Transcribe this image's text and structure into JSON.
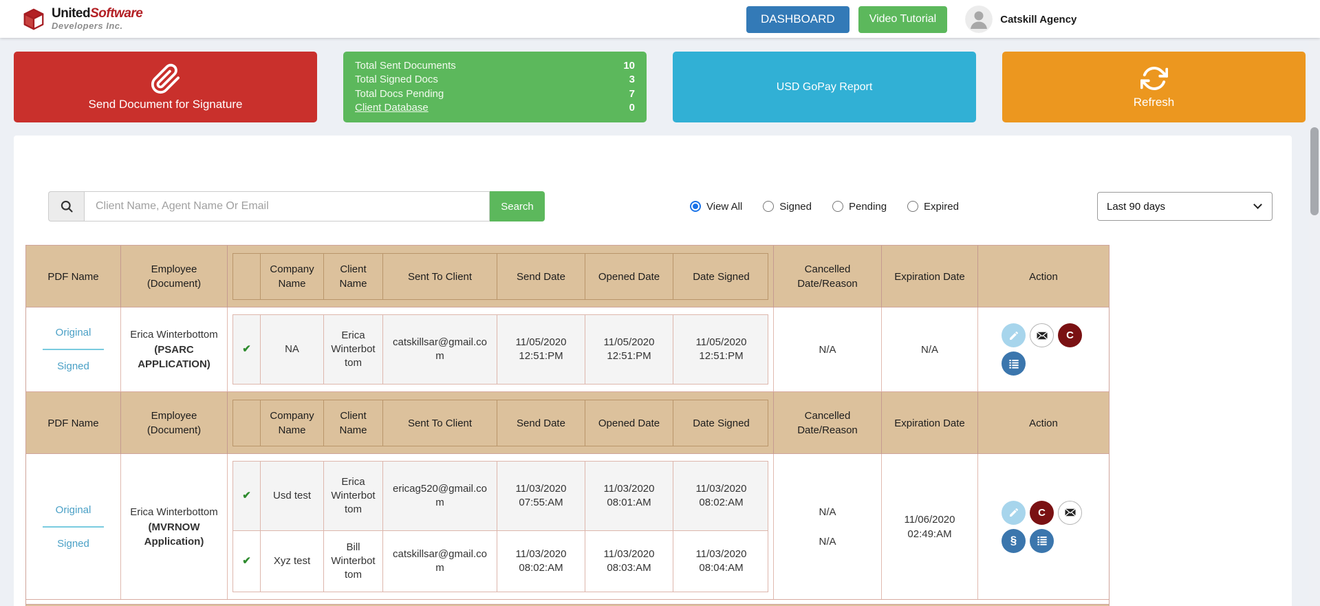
{
  "topbar": {
    "logo": {
      "word1": "United",
      "word2": "Software",
      "tagline": "Developers Inc."
    },
    "dashboard_button": "DASHBOARD",
    "video_button": "Video Tutorial",
    "agency_name": "Catskill Agency"
  },
  "cards": {
    "send_signature": {
      "label": "Send Document for Signature",
      "color": "#c9302c"
    },
    "stats": [
      {
        "label": "Total Sent Documents",
        "value": "10"
      },
      {
        "label": "Total Signed Docs",
        "value": "3"
      },
      {
        "label": "Total Docs Pending",
        "value": "7"
      },
      {
        "label": "Client Database",
        "value": "0",
        "link": true
      }
    ],
    "stats_color": "#5cb85c",
    "gopay": {
      "label": "USD GoPay Report",
      "color": "#31b0d5"
    },
    "refresh": {
      "label": "Refresh",
      "color": "#ec971f"
    }
  },
  "toolbar": {
    "search": {
      "placeholder": "Client Name, Agent Name Or Email",
      "button": "Search"
    },
    "filters": [
      {
        "label": "View All",
        "selected": true
      },
      {
        "label": "Signed",
        "selected": false
      },
      {
        "label": "Pending",
        "selected": false
      },
      {
        "label": "Expired",
        "selected": false
      }
    ],
    "date_range": "Last 90 days"
  },
  "table": {
    "headers": {
      "pdf_name": "PDF Name",
      "employee": "Employee (Document)",
      "company": "Company Name",
      "client": "Client Name",
      "sent_to": "Sent To Client",
      "send_date": "Send Date",
      "opened_date": "Opened Date",
      "date_signed": "Date Signed",
      "cancelled": "Cancelled Date/Reason",
      "expiration": "Expiration Date",
      "action": "Action"
    },
    "groups": [
      {
        "pdf_links": {
          "original": "Original",
          "signed": "Signed"
        },
        "employee_name": "Erica Winterbottom",
        "document_name": "(PSARC APPLICATION)",
        "rows": [
          {
            "company": "NA",
            "client": "Erica Winterbottom",
            "email": "catskillsar@gmail.com",
            "send_date": "11/05/2020 12:51:PM",
            "opened": "11/05/2020 12:51:PM",
            "signed": "11/05/2020 12:51:PM"
          }
        ],
        "cancelled": [
          "N/A"
        ],
        "expiration": [
          "N/A"
        ],
        "actions": [
          "edit",
          "email",
          "cancel",
          "list"
        ]
      },
      {
        "pdf_links": {
          "original": "Original",
          "signed": "Signed"
        },
        "employee_name": "Erica Winterbottom",
        "document_name": "(MVRNOW Application)",
        "rows": [
          {
            "company": "Usd test",
            "client": "Erica Winterbottom",
            "email": "ericag520@gmail.com",
            "send_date": "11/03/2020 07:55:AM",
            "opened": "11/03/2020 08:01:AM",
            "signed": "11/03/2020 08:02:AM"
          },
          {
            "company": "Xyz test",
            "client": "Bill Winterbottom",
            "email": "catskillsar@gmail.com",
            "send_date": "11/03/2020 08:02:AM",
            "opened": "11/03/2020 08:03:AM",
            "signed": "11/03/2020 08:04:AM"
          }
        ],
        "cancelled": [
          "N/A",
          "N/A"
        ],
        "expiration": [
          "11/06/2020 02:49:AM"
        ],
        "actions": [
          "edit",
          "cancel",
          "email",
          "link",
          "list"
        ]
      }
    ]
  },
  "icons": {
    "check": "✔",
    "cancel_glyph": "C",
    "link_glyph": "§",
    "paperclip": "paperclip-icon",
    "refresh": "refresh-icon",
    "search": "search-icon",
    "envelope": "envelope-icon",
    "pencil": "pencil-icon",
    "list": "list-icon"
  },
  "colors": {
    "header_blue_button": "#337ab7",
    "green": "#5cb85c",
    "red_card": "#c9302c",
    "cyan_card": "#31b0d5",
    "orange_card": "#ec971f",
    "table_header_bg": "#dcc19c",
    "link_blue": "#4aa0c6",
    "action_edit_bg": "#a7d5ec",
    "action_cancel_bg": "#7a1113",
    "action_list_bg": "#3b76ad",
    "check_green": "#2e8b2e"
  }
}
